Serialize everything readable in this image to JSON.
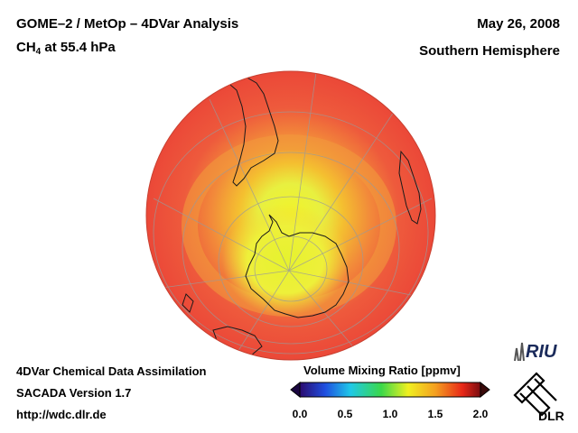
{
  "header": {
    "title_main": "GOME–2 / MetOp – 4DVar Analysis",
    "species_prefix": "CH",
    "species_subscript": "4",
    "species_suffix": " at 55.4 hPa",
    "date": "May 26, 2008",
    "hemisphere": "Southern Hemisphere"
  },
  "footer": {
    "line1": "4DVar Chemical Data Assimilation",
    "line2": "SACADA Version 1.7",
    "line3": "http://wdc.dlr.de"
  },
  "colorbar": {
    "title": "Volume Mixing Ratio [ppmv]",
    "ticks": [
      "0.0",
      "0.5",
      "1.0",
      "1.5",
      "2.0"
    ],
    "colors": [
      "#2b0a6e",
      "#1f4fe0",
      "#1fc8e8",
      "#3ad84a",
      "#f0f020",
      "#f4a020",
      "#e82818",
      "#7a0c10"
    ]
  },
  "map": {
    "ocean_color": "#ea4a3a",
    "rim_color": "#f05a44"
  },
  "logos": {
    "riu": "RIU",
    "dlr": "DLR"
  }
}
